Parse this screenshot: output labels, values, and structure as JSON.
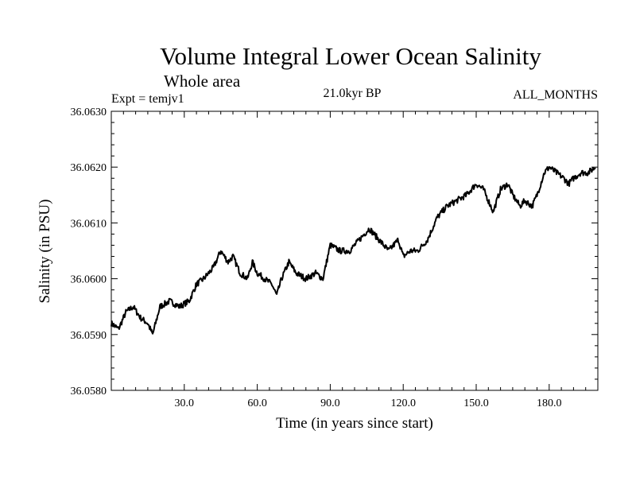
{
  "chart_data": {
    "type": "line",
    "title": "Volume Integral Lower Ocean Salinity",
    "subtitle": "Whole area",
    "header_left": "Expt = temjv1",
    "header_center": "21.0kyr BP",
    "header_right": "ALL_MONTHS",
    "xlabel": "Time (in years since start)",
    "ylabel": "Salinity (in PSU)",
    "xlim": [
      0,
      200
    ],
    "ylim": [
      36.058,
      36.063
    ],
    "xticks": [
      30,
      60,
      90,
      120,
      150,
      180
    ],
    "xtick_labels": [
      "30.0",
      "60.0",
      "90.0",
      "120.0",
      "150.0",
      "180.0"
    ],
    "yticks": [
      36.058,
      36.059,
      36.06,
      36.061,
      36.062,
      36.063
    ],
    "ytick_labels": [
      "36.0580",
      "36.0590",
      "36.0600",
      "36.0610",
      "36.0620",
      "36.0630"
    ],
    "grid": false,
    "series": [
      {
        "name": "Salinity",
        "x": [
          0,
          3,
          6,
          9,
          12,
          15,
          17,
          20,
          24,
          28,
          32,
          35,
          38,
          42,
          45,
          48,
          50,
          53,
          56,
          58,
          60,
          63,
          66,
          68,
          70,
          73,
          76,
          80,
          84,
          87,
          90,
          94,
          98,
          102,
          106,
          110,
          114,
          116,
          118,
          120,
          123,
          126,
          130,
          134,
          138,
          142,
          146,
          150,
          153,
          155,
          157,
          160,
          163,
          165,
          168,
          170,
          173,
          175,
          178,
          180,
          183,
          186,
          188,
          190,
          193,
          196,
          199
        ],
        "y": [
          36.0592,
          36.0591,
          36.0594,
          36.0595,
          36.0593,
          36.0592,
          36.059,
          36.0595,
          36.0596,
          36.0595,
          36.0596,
          36.0599,
          36.06,
          36.0602,
          36.0605,
          36.0603,
          36.0604,
          36.0601,
          36.06,
          36.0603,
          36.0601,
          36.06,
          36.0599,
          36.0597,
          36.06,
          36.0603,
          36.0601,
          36.06,
          36.0601,
          36.06,
          36.0606,
          36.0605,
          36.0605,
          36.0607,
          36.0609,
          36.0607,
          36.0605,
          36.0606,
          36.0607,
          36.0604,
          36.0605,
          36.0605,
          36.0607,
          36.0611,
          36.0613,
          36.0614,
          36.0615,
          36.0617,
          36.0616,
          36.0614,
          36.0612,
          36.0616,
          36.0617,
          36.0615,
          36.0613,
          36.0614,
          36.0613,
          36.0615,
          36.0619,
          36.062,
          36.0619,
          36.0618,
          36.0617,
          36.0618,
          36.0619,
          36.0619,
          36.062
        ]
      }
    ]
  },
  "colors": {
    "line": "#000000",
    "axis": "#000000",
    "background": "#ffffff"
  }
}
